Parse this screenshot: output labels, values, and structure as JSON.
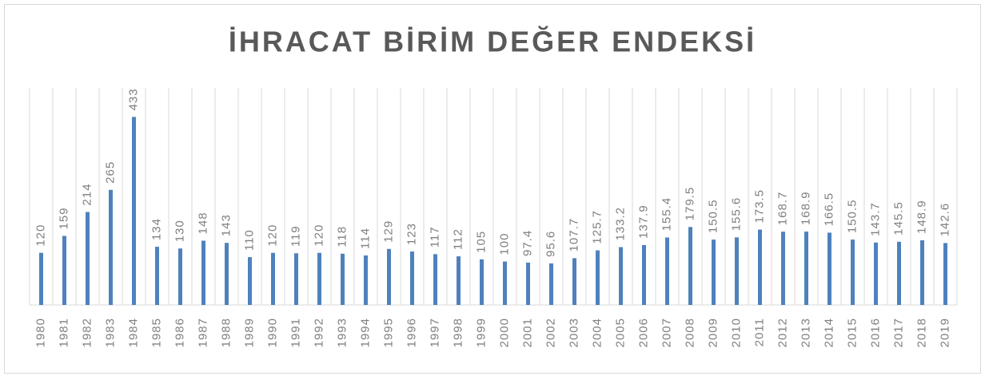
{
  "chart_data": {
    "type": "bar",
    "title": "İHRACAT BİRİM DEĞER ENDEKSİ",
    "categories": [
      "1980",
      "1981",
      "1982",
      "1983",
      "1984",
      "1985",
      "1986",
      "1987",
      "1988",
      "1989",
      "1990",
      "1991",
      "1992",
      "1993",
      "1994",
      "1995",
      "1996",
      "1997",
      "1998",
      "1999",
      "2000",
      "2001",
      "2002",
      "2003",
      "2004",
      "2005",
      "2006",
      "2007",
      "2008",
      "2009",
      "2010",
      "2011",
      "2012",
      "2013",
      "2014",
      "2015",
      "2016",
      "2017",
      "2018",
      "2019"
    ],
    "values": [
      120,
      159,
      214,
      265,
      433,
      134,
      130,
      148,
      143,
      110,
      120,
      119,
      120,
      118,
      114,
      129,
      123,
      117,
      112,
      105,
      100,
      97.4,
      95.6,
      107.7,
      125.7,
      133.2,
      137.9,
      155.4,
      179.5,
      150.5,
      155.6,
      173.5,
      168.7,
      168.9,
      166.5,
      150.5,
      143.7,
      145.5,
      148.9,
      142.6
    ],
    "color": "#4f81bd",
    "ylim": [
      0,
      500
    ],
    "grid": true
  }
}
